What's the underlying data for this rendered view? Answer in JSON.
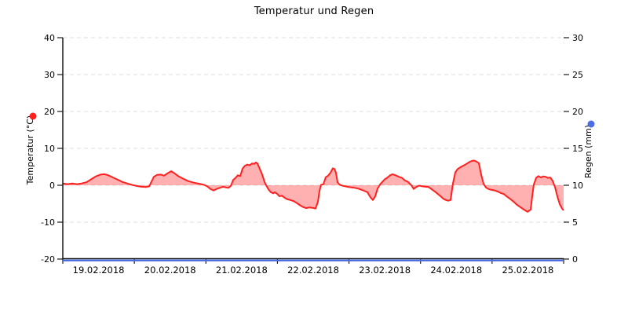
{
  "chart_data": {
    "type": "line",
    "title": "Temperatur und Regen",
    "x_axis": {
      "tick_labels": [
        "19.02.2018",
        "20.02.2018",
        "21.02.2018",
        "22.02.2018",
        "23.02.2018",
        "24.02.2018",
        "25.02.2018"
      ],
      "range_days": [
        0,
        7
      ]
    },
    "left_axis": {
      "label": "Temperatur (°C)",
      "ticks": [
        40,
        30,
        20,
        10,
        0,
        -10,
        -20
      ],
      "range": [
        -20,
        40
      ]
    },
    "right_axis": {
      "label": "Regen (mm)",
      "ticks": [
        30,
        25,
        20,
        15,
        10,
        5,
        0
      ],
      "range": [
        0,
        30
      ]
    },
    "grid": {
      "horizontal": true,
      "style": "dashed",
      "color": "#dcdcdc"
    },
    "axis_color": "#1a1a1a",
    "series": [
      {
        "name": "Temperatur (°C)",
        "axis": "left",
        "color": "#ff2020",
        "fill": "rgba(255,80,80,0.45)",
        "baseline": 0,
        "points": [
          [
            0.0,
            0.5
          ],
          [
            0.066,
            0.3
          ],
          [
            0.132,
            0.5
          ],
          [
            0.197,
            0.3
          ],
          [
            0.263,
            0.5
          ],
          [
            0.329,
            0.8
          ],
          [
            0.395,
            1.6
          ],
          [
            0.461,
            2.4
          ],
          [
            0.527,
            2.9
          ],
          [
            0.581,
            3.0
          ],
          [
            0.636,
            2.7
          ],
          [
            0.702,
            2.1
          ],
          [
            0.768,
            1.5
          ],
          [
            0.834,
            0.9
          ],
          [
            0.9,
            0.5
          ],
          [
            0.966,
            0.1
          ],
          [
            1.031,
            -0.2
          ],
          [
            1.097,
            -0.4
          ],
          [
            1.163,
            -0.5
          ],
          [
            1.207,
            -0.3
          ],
          [
            1.24,
            1.0
          ],
          [
            1.273,
            2.3
          ],
          [
            1.317,
            2.8
          ],
          [
            1.371,
            2.9
          ],
          [
            1.415,
            2.6
          ],
          [
            1.459,
            3.2
          ],
          [
            1.514,
            3.8
          ],
          [
            1.558,
            3.3
          ],
          [
            1.613,
            2.5
          ],
          [
            1.679,
            1.8
          ],
          [
            1.755,
            1.1
          ],
          [
            1.832,
            0.7
          ],
          [
            1.909,
            0.4
          ],
          [
            1.975,
            0.1
          ],
          [
            2.019,
            -0.3
          ],
          [
            2.063,
            -1.0
          ],
          [
            2.107,
            -1.4
          ],
          [
            2.15,
            -1.0
          ],
          [
            2.194,
            -0.7
          ],
          [
            2.238,
            -0.4
          ],
          [
            2.282,
            -0.6
          ],
          [
            2.315,
            -0.7
          ],
          [
            2.348,
            -0.2
          ],
          [
            2.381,
            1.4
          ],
          [
            2.414,
            2.0
          ],
          [
            2.447,
            2.7
          ],
          [
            2.48,
            2.5
          ],
          [
            2.513,
            4.5
          ],
          [
            2.545,
            5.3
          ],
          [
            2.578,
            5.6
          ],
          [
            2.611,
            5.4
          ],
          [
            2.644,
            5.9
          ],
          [
            2.677,
            5.8
          ],
          [
            2.699,
            6.2
          ],
          [
            2.721,
            5.9
          ],
          [
            2.754,
            4.4
          ],
          [
            2.787,
            2.9
          ],
          [
            2.82,
            0.9
          ],
          [
            2.842,
            0.0
          ],
          [
            2.875,
            -1.1
          ],
          [
            2.907,
            -1.9
          ],
          [
            2.94,
            -2.2
          ],
          [
            2.962,
            -1.9
          ],
          [
            2.995,
            -2.3
          ],
          [
            3.028,
            -3.0
          ],
          [
            3.061,
            -2.8
          ],
          [
            3.094,
            -3.3
          ],
          [
            3.138,
            -3.8
          ],
          [
            3.182,
            -4.0
          ],
          [
            3.226,
            -4.3
          ],
          [
            3.27,
            -4.8
          ],
          [
            3.313,
            -5.4
          ],
          [
            3.357,
            -5.9
          ],
          [
            3.401,
            -6.2
          ],
          [
            3.445,
            -6.0
          ],
          [
            3.489,
            -6.1
          ],
          [
            3.533,
            -6.3
          ],
          [
            3.566,
            -4.5
          ],
          [
            3.588,
            -1.5
          ],
          [
            3.61,
            0.1
          ],
          [
            3.643,
            0.3
          ],
          [
            3.676,
            2.2
          ],
          [
            3.708,
            2.6
          ],
          [
            3.741,
            3.4
          ],
          [
            3.774,
            4.6
          ],
          [
            3.796,
            4.4
          ],
          [
            3.818,
            3.4
          ],
          [
            3.84,
            0.8
          ],
          [
            3.873,
            0.1
          ],
          [
            3.906,
            -0.1
          ],
          [
            3.95,
            -0.3
          ],
          [
            3.994,
            -0.5
          ],
          [
            4.038,
            -0.6
          ],
          [
            4.081,
            -0.7
          ],
          [
            4.125,
            -0.9
          ],
          [
            4.169,
            -1.2
          ],
          [
            4.213,
            -1.5
          ],
          [
            4.257,
            -1.9
          ],
          [
            4.301,
            -3.3
          ],
          [
            4.334,
            -4.0
          ],
          [
            4.367,
            -3.0
          ],
          [
            4.4,
            -0.9
          ],
          [
            4.433,
            0.2
          ],
          [
            4.465,
            0.9
          ],
          [
            4.498,
            1.6
          ],
          [
            4.531,
            2.0
          ],
          [
            4.575,
            2.7
          ],
          [
            4.608,
            3.0
          ],
          [
            4.652,
            2.7
          ],
          [
            4.696,
            2.3
          ],
          [
            4.74,
            2.0
          ],
          [
            4.784,
            1.3
          ],
          [
            4.827,
            0.9
          ],
          [
            4.871,
            0.0
          ],
          [
            4.904,
            -1.0
          ],
          [
            4.937,
            -0.5
          ],
          [
            4.981,
            -0.1
          ],
          [
            5.025,
            -0.3
          ],
          [
            5.069,
            -0.4
          ],
          [
            5.113,
            -0.5
          ],
          [
            5.157,
            -1.1
          ],
          [
            5.2,
            -1.7
          ],
          [
            5.244,
            -2.4
          ],
          [
            5.288,
            -3.1
          ],
          [
            5.321,
            -3.7
          ],
          [
            5.354,
            -4.0
          ],
          [
            5.387,
            -4.2
          ],
          [
            5.42,
            -4.0
          ],
          [
            5.453,
            0.5
          ],
          [
            5.486,
            3.5
          ],
          [
            5.519,
            4.4
          ],
          [
            5.552,
            4.8
          ],
          [
            5.585,
            5.2
          ],
          [
            5.617,
            5.5
          ],
          [
            5.65,
            5.9
          ],
          [
            5.683,
            6.3
          ],
          [
            5.716,
            6.6
          ],
          [
            5.749,
            6.7
          ],
          [
            5.782,
            6.4
          ],
          [
            5.815,
            6.0
          ],
          [
            5.848,
            2.9
          ],
          [
            5.881,
            0.4
          ],
          [
            5.914,
            -0.6
          ],
          [
            5.947,
            -1.0
          ],
          [
            5.98,
            -1.2
          ],
          [
            6.034,
            -1.4
          ],
          [
            6.078,
            -1.7
          ],
          [
            6.122,
            -2.1
          ],
          [
            6.166,
            -2.4
          ],
          [
            6.21,
            -3.1
          ],
          [
            6.254,
            -3.7
          ],
          [
            6.298,
            -4.4
          ],
          [
            6.342,
            -5.2
          ],
          [
            6.386,
            -5.8
          ],
          [
            6.43,
            -6.4
          ],
          [
            6.462,
            -6.8
          ],
          [
            6.495,
            -7.2
          ],
          [
            6.517,
            -6.9
          ],
          [
            6.539,
            -6.6
          ],
          [
            6.561,
            -3.0
          ],
          [
            6.583,
            0.2
          ],
          [
            6.616,
            2.0
          ],
          [
            6.649,
            2.5
          ],
          [
            6.682,
            2.1
          ],
          [
            6.715,
            2.4
          ],
          [
            6.748,
            2.3
          ],
          [
            6.781,
            2.0
          ],
          [
            6.813,
            2.1
          ],
          [
            6.846,
            1.2
          ],
          [
            6.879,
            -0.5
          ],
          [
            6.912,
            -3.0
          ],
          [
            6.945,
            -5.1
          ],
          [
            6.978,
            -6.3
          ],
          [
            7.0,
            -6.8
          ]
        ]
      },
      {
        "name": "Regen (mm)",
        "axis": "right",
        "color": "#4d6de3",
        "points": [
          [
            0,
            0
          ],
          [
            7,
            0
          ]
        ]
      }
    ]
  }
}
